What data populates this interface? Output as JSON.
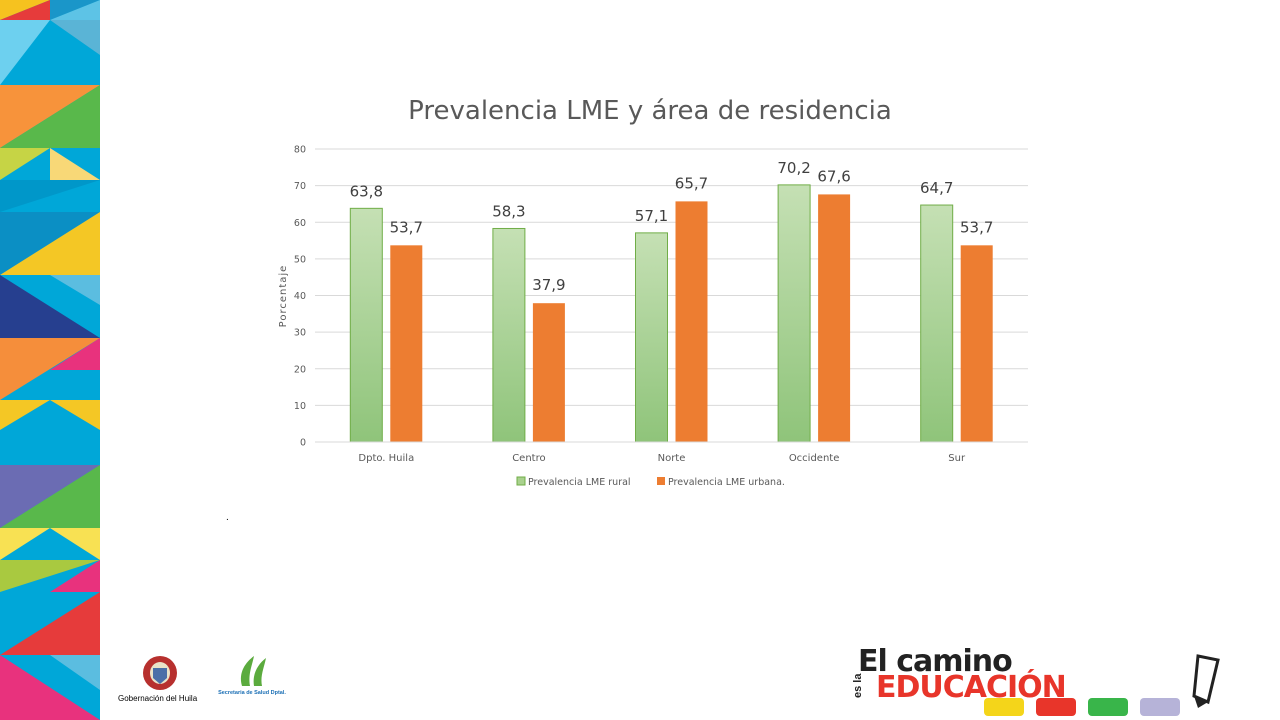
{
  "footer": {
    "gobernacion_label": "Gobernación del Huila",
    "secretaria_label": "Secretaria de Salud Dptal.",
    "brand_top": "El camino",
    "brand_side": "es la",
    "brand_main": "EDUCACIÓN"
  },
  "dot": ".",
  "chart_data": {
    "type": "bar",
    "title": "Prevalencia LME y área de residencia",
    "xlabel": "",
    "ylabel": "Porcentaje",
    "ylim": [
      0,
      80
    ],
    "yticks": [
      0,
      10,
      20,
      30,
      40,
      50,
      60,
      70,
      80
    ],
    "grid": true,
    "legend": "bottom",
    "categories": [
      "Dpto. Huila",
      "Centro",
      "Norte",
      "Occidente",
      "Sur"
    ],
    "series": [
      {
        "name": "Prevalencia LME rural",
        "values": [
          63.8,
          58.3,
          57.1,
          70.2,
          64.7
        ],
        "labels": [
          "63,8",
          "58,3",
          "57,1",
          "70,2",
          "64,7"
        ],
        "color": "#a9d18e"
      },
      {
        "name": "Prevalencia LME urbana.",
        "values": [
          53.7,
          37.9,
          65.7,
          67.6,
          53.7
        ],
        "labels": [
          "53,7",
          "37,9",
          "65,7",
          "67,6",
          "53,7"
        ],
        "color": "#ed7d31"
      }
    ]
  }
}
